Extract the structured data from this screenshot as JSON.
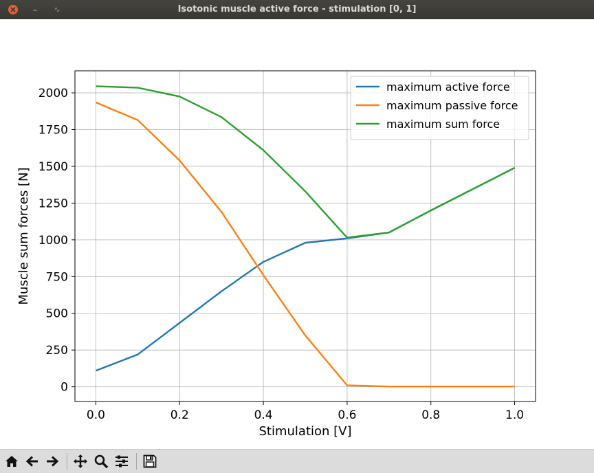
{
  "window": {
    "title": "Isotonic muscle active force - stimulation [0, 1]"
  },
  "toolbar": {
    "icons": [
      "home-icon",
      "back-icon",
      "forward-icon",
      "pan-icon",
      "zoom-icon",
      "configure-subplots-icon",
      "save-icon"
    ]
  },
  "chart_data": {
    "type": "line",
    "title": "",
    "xlabel": "Stimulation [V]",
    "ylabel": "Muscle sum forces [N]",
    "xlim": [
      -0.05,
      1.05
    ],
    "ylim": [
      -100,
      2150
    ],
    "xticks": [
      0.0,
      0.2,
      0.4,
      0.6,
      0.8,
      1.0
    ],
    "xtick_labels": [
      "0.0",
      "0.2",
      "0.4",
      "0.6",
      "0.8",
      "1.0"
    ],
    "yticks": [
      0,
      250,
      500,
      750,
      1000,
      1250,
      1500,
      1750,
      2000
    ],
    "ytick_labels": [
      "0",
      "250",
      "500",
      "750",
      "1000",
      "1250",
      "1500",
      "1750",
      "2000"
    ],
    "grid": true,
    "legend_position": "upper right",
    "x": [
      0.0,
      0.1,
      0.2,
      0.3,
      0.4,
      0.5,
      0.6,
      0.7,
      0.8,
      0.9,
      1.0
    ],
    "series": [
      {
        "name": "maximum active force",
        "color": "#1f77b4",
        "values": [
          110,
          220,
          435,
          650,
          850,
          980,
          1010,
          1050,
          1200,
          1345,
          1490
        ]
      },
      {
        "name": "maximum passive force",
        "color": "#ff7f0e",
        "values": [
          1935,
          1815,
          1540,
          1190,
          760,
          350,
          10,
          2,
          2,
          2,
          2
        ]
      },
      {
        "name": "maximum sum force",
        "color": "#2ca02c",
        "values": [
          2045,
          2035,
          1975,
          1835,
          1610,
          1330,
          1015,
          1050,
          1200,
          1345,
          1490
        ]
      }
    ]
  }
}
